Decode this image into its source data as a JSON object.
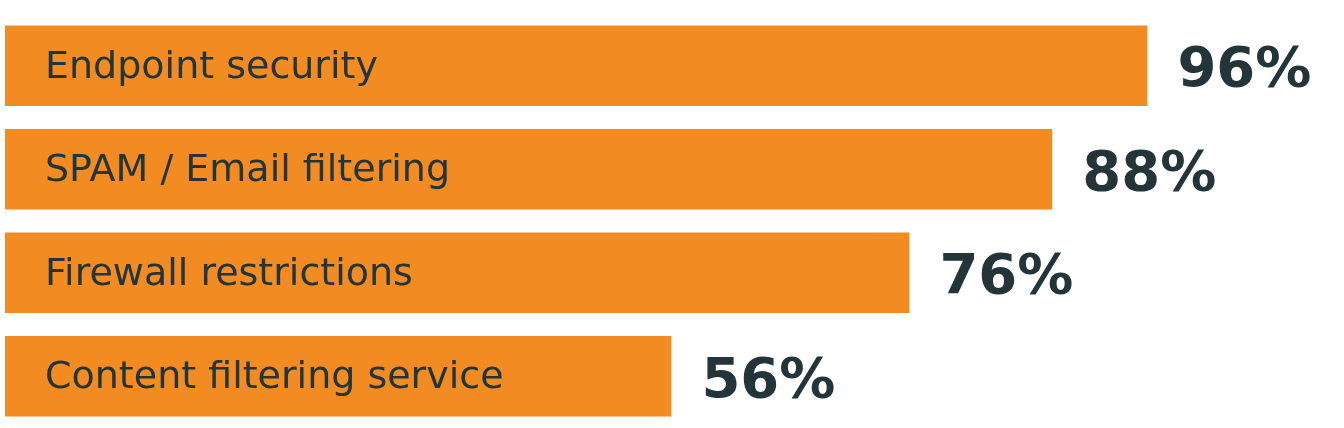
{
  "chart_data": {
    "type": "bar",
    "orientation": "horizontal",
    "categories": [
      "Endpoint security",
      "SPAM / Email filtering",
      "Firewall restrictions",
      "Content filtering service"
    ],
    "values": [
      96,
      88,
      76,
      56
    ],
    "color": "#f28c22",
    "value_labels": [
      "96%",
      "88%",
      "76%",
      "56%"
    ]
  }
}
